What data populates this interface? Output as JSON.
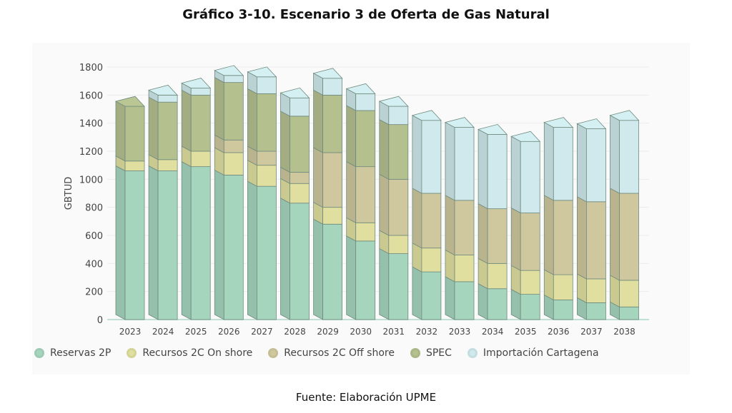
{
  "title": "Gráfico 3-10. Escenario 3 de Oferta de Gas Natural",
  "footer": "Fuente: Elaboración UPME",
  "chart_data": {
    "type": "bar",
    "stacked": true,
    "title": "Gráfico 3-10. Escenario 3 de Oferta de Gas Natural",
    "xlabel": "",
    "ylabel": "GBTUD",
    "ylim": [
      0,
      1800
    ],
    "yticks": [
      0,
      200,
      400,
      600,
      800,
      1000,
      1200,
      1400,
      1600,
      1800
    ],
    "grid": true,
    "legend_position": "bottom",
    "categories": [
      "2023",
      "2024",
      "2025",
      "2026",
      "2027",
      "2028",
      "2029",
      "2030",
      "2031",
      "2032",
      "2033",
      "2034",
      "2035",
      "2036",
      "2037",
      "2038"
    ],
    "series": [
      {
        "name": "Reservas 2P",
        "color": "#a6d5be",
        "values": [
          1060,
          1060,
          1090,
          1030,
          950,
          830,
          680,
          560,
          470,
          340,
          270,
          220,
          180,
          140,
          120,
          90
        ]
      },
      {
        "name": "Recursos 2C On shore",
        "color": "#e0df9f",
        "values": [
          70,
          80,
          110,
          160,
          150,
          140,
          120,
          130,
          130,
          170,
          190,
          180,
          170,
          180,
          170,
          190
        ]
      },
      {
        "name": "Recursos 2C Off shore",
        "color": "#cfc89e",
        "values": [
          0,
          0,
          0,
          90,
          100,
          80,
          390,
          400,
          400,
          390,
          390,
          390,
          410,
          530,
          550,
          620
        ]
      },
      {
        "name": "SPEC",
        "color": "#b5c08f",
        "values": [
          390,
          410,
          400,
          410,
          410,
          400,
          410,
          400,
          390,
          0,
          0,
          0,
          0,
          0,
          0,
          0
        ]
      },
      {
        "name": "Importación Cartagena",
        "color": "#cfe9ec",
        "values": [
          0,
          50,
          50,
          50,
          120,
          130,
          120,
          120,
          130,
          520,
          520,
          530,
          510,
          520,
          520,
          520
        ]
      }
    ]
  }
}
